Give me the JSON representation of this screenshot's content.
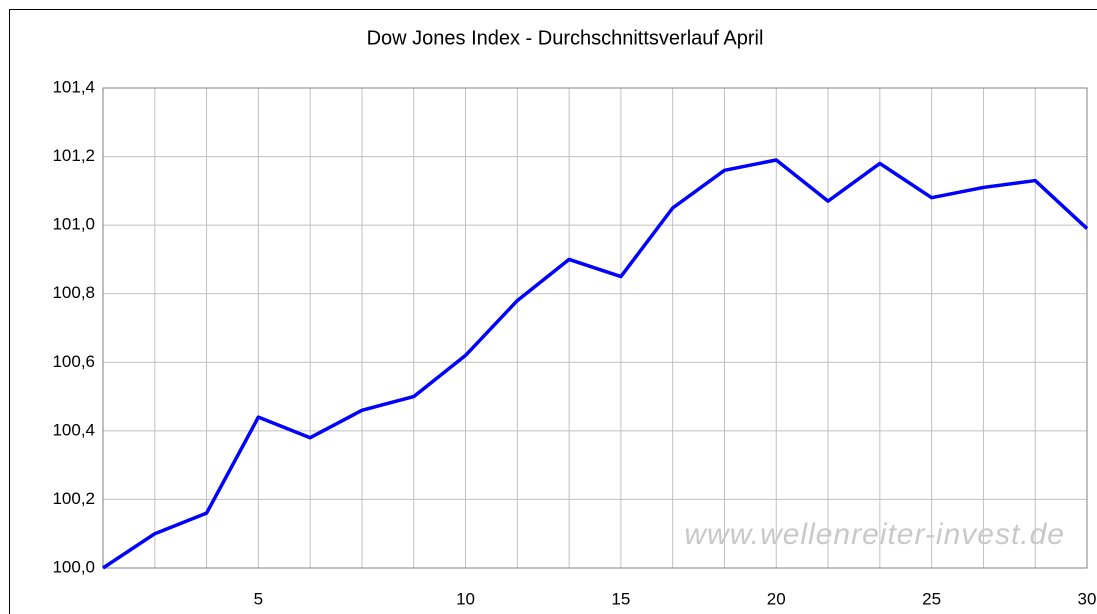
{
  "chart_data": {
    "type": "line",
    "title": "Dow Jones Index - Durchschnittsverlauf April",
    "annotation": "www.wellenreiter-invest.de",
    "categories": [
      null,
      null,
      null,
      "5",
      null,
      null,
      null,
      "10",
      null,
      null,
      "15",
      null,
      null,
      "20",
      null,
      null,
      "25",
      null,
      null,
      "30"
    ],
    "series": [
      {
        "name": "Dow Jones",
        "color": "#0000ff",
        "values": [
          100.0,
          100.1,
          100.16,
          100.44,
          100.38,
          100.46,
          100.5,
          100.62,
          100.78,
          100.9,
          100.85,
          101.05,
          101.16,
          101.19,
          101.07,
          101.18,
          101.08,
          101.11,
          101.13,
          100.99
        ]
      }
    ],
    "ylim": [
      100.0,
      101.4
    ],
    "yticks": [
      {
        "value": 100.0,
        "label": "100,0"
      },
      {
        "value": 100.2,
        "label": "100,2"
      },
      {
        "value": 100.4,
        "label": "100,4"
      },
      {
        "value": 100.6,
        "label": "100,6"
      },
      {
        "value": 100.8,
        "label": "100,8"
      },
      {
        "value": 101.0,
        "label": "101,0"
      },
      {
        "value": 101.2,
        "label": "101,2"
      },
      {
        "value": 101.4,
        "label": "101,4"
      }
    ],
    "grid": true
  }
}
